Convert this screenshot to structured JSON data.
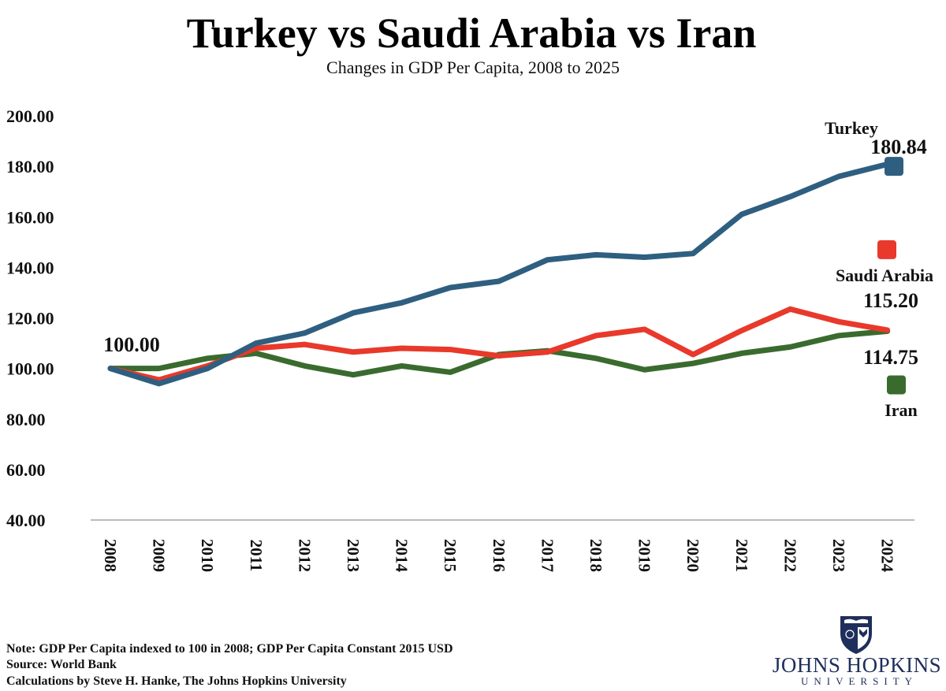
{
  "chart_data": {
    "type": "line",
    "title": "Turkey vs Saudi Arabia vs Iran",
    "subtitle": "Changes in GDP Per Capita, 2008 to 2025",
    "xlabel": "",
    "ylabel": "",
    "x": [
      "2008",
      "2009",
      "2010",
      "2011",
      "2012",
      "2013",
      "2014",
      "2015",
      "2016",
      "2017",
      "2018",
      "2019",
      "2020",
      "2021",
      "2022",
      "2023",
      "2024"
    ],
    "ylim": [
      40,
      200
    ],
    "yticks": [
      "40.00",
      "60.00",
      "80.00",
      "100.00",
      "120.00",
      "140.00",
      "160.00",
      "180.00",
      "200.00"
    ],
    "grid": false,
    "legend_placement": "right",
    "start_label": "100.00",
    "series": [
      {
        "name": "Turkey",
        "color": "#2f5f80",
        "end_label": "180.84",
        "legend_value": 180,
        "values": [
          100,
          94,
          100,
          110,
          114,
          122,
          126,
          132,
          134.5,
          143,
          145,
          144,
          145.5,
          161,
          168,
          176,
          180.84
        ]
      },
      {
        "name": "Saudi Arabia",
        "color": "#e8392b",
        "end_label": "115.20",
        "legend_value": 147,
        "values": [
          100,
          95.5,
          101,
          108,
          109.5,
          106.5,
          108,
          107.5,
          105,
          106.5,
          113,
          115.5,
          105.5,
          115,
          123.5,
          118.5,
          115.2
        ]
      },
      {
        "name": "Iran",
        "color": "#3a6b2e",
        "end_label": "114.75",
        "legend_value": 93.5,
        "values": [
          100,
          100,
          104,
          106,
          101,
          97.5,
          101,
          98.5,
          105.5,
          107,
          104,
          99.5,
          102,
          106,
          108.5,
          113,
          114.75
        ]
      }
    ]
  },
  "notes": [
    "Note: GDP Per Capita indexed to 100 in 2008; GDP Per Capita Constant 2015 USD",
    "Source: World Bank",
    "Calculations by Steve H. Hanke, The Johns Hopkins University"
  ],
  "logo": {
    "name": "JOHNS HOPKINS",
    "sub": "UNIVERSITY",
    "color": "#1f2f5c"
  }
}
